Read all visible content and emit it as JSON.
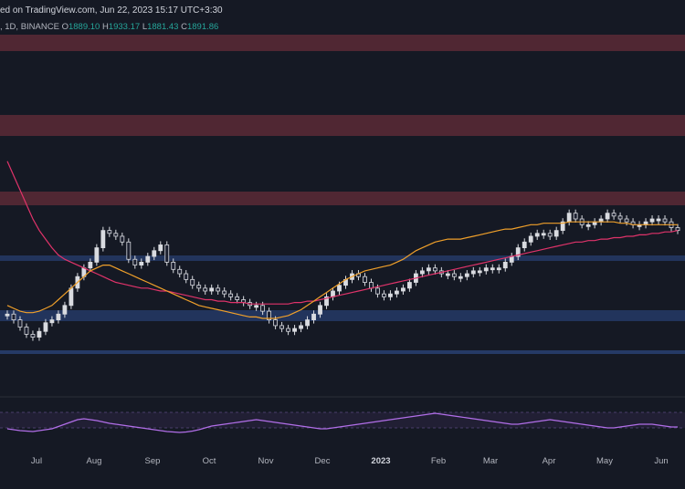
{
  "header": {
    "text": "ed on TradingView.com, Jun 22, 2023 15:17 UTC+3:30"
  },
  "ohlc": {
    "prefix": ", 1D, BINANCE",
    "open_label": "O",
    "open": "1889.10",
    "high_label": "H",
    "high": "1933.17",
    "low_label": "L",
    "low": "1881.43",
    "close_label": "C",
    "close": "1891.86"
  },
  "colors": {
    "background": "#151924",
    "up": "#26a69a",
    "down": "#ef5350",
    "candle": "#d9dbe0",
    "ma_fast": "#f0a02a",
    "ma_slow": "#e0336a",
    "rsi": "#b16ee8",
    "resistance_zone": "#5a2a36",
    "support_zone": "#253a66"
  },
  "chart_data": [
    {
      "type": "line",
      "description_of_series": "price candlestick with moving averages",
      "x_tick_labels": [
        "Jul",
        "Aug",
        "Sep",
        "Oct",
        "Nov",
        "Dec",
        "2023",
        "Feb",
        "Mar",
        "Apr",
        "May",
        "Jun"
      ],
      "ylim": [
        0,
        100
      ],
      "close": [
        34,
        30,
        25,
        20,
        18,
        22,
        28,
        30,
        34,
        40,
        52,
        60,
        66,
        70,
        80,
        92,
        90,
        88,
        84,
        72,
        68,
        70,
        74,
        78,
        82,
        70,
        65,
        62,
        58,
        54,
        52,
        50,
        52,
        50,
        48,
        46,
        44,
        42,
        40,
        40,
        36,
        30,
        26,
        24,
        22,
        24,
        26,
        30,
        34,
        40,
        46,
        50,
        54,
        58,
        62,
        60,
        56,
        52,
        48,
        46,
        48,
        50,
        52,
        56,
        62,
        64,
        66,
        64,
        62,
        62,
        60,
        60,
        62,
        64,
        64,
        66,
        66,
        66,
        70,
        74,
        80,
        84,
        88,
        90,
        90,
        88,
        92,
        98,
        104,
        100,
        96,
        96,
        98,
        100,
        104,
        102,
        100,
        98,
        96,
        96,
        98,
        100,
        100,
        98,
        94,
        92
      ],
      "ma_fast": [
        40,
        38,
        36,
        35,
        35,
        36,
        38,
        40,
        44,
        48,
        52,
        56,
        60,
        64,
        66,
        68,
        68,
        66,
        64,
        62,
        60,
        58,
        56,
        54,
        52,
        50,
        48,
        46,
        44,
        42,
        40,
        39,
        38,
        37,
        36,
        35,
        34,
        33,
        32,
        32,
        31,
        31,
        31,
        32,
        33,
        35,
        37,
        40,
        43,
        46,
        49,
        52,
        55,
        58,
        60,
        62,
        64,
        65,
        66,
        67,
        68,
        70,
        72,
        75,
        78,
        80,
        82,
        84,
        85,
        86,
        86,
        86,
        87,
        88,
        89,
        90,
        91,
        92,
        93,
        93,
        94,
        95,
        96,
        96,
        97,
        97,
        97,
        97,
        98,
        98,
        98,
        98,
        98,
        98,
        98,
        98,
        97,
        97,
        96,
        96,
        96,
        96,
        96,
        96,
        96,
        96
      ],
      "ma_slow": [
        140,
        130,
        120,
        110,
        100,
        92,
        86,
        80,
        75,
        72,
        70,
        68,
        66,
        64,
        62,
        60,
        58,
        56,
        55,
        54,
        53,
        52,
        52,
        51,
        50,
        50,
        49,
        48,
        47,
        46,
        45,
        44,
        44,
        43,
        43,
        42,
        42,
        42,
        41,
        41,
        41,
        41,
        41,
        41,
        41,
        42,
        42,
        43,
        43,
        44,
        45,
        46,
        47,
        48,
        49,
        50,
        51,
        52,
        53,
        54,
        55,
        56,
        57,
        58,
        59,
        60,
        61,
        62,
        63,
        64,
        65,
        66,
        67,
        68,
        69,
        70,
        71,
        72,
        73,
        74,
        75,
        76,
        77,
        78,
        79,
        80,
        81,
        82,
        83,
        84,
        84,
        85,
        85,
        86,
        86,
        87,
        87,
        88,
        88,
        89,
        89,
        90,
        90,
        91,
        91,
        92
      ],
      "rsi": [
        40,
        38,
        36,
        35,
        34,
        36,
        38,
        40,
        45,
        50,
        55,
        60,
        62,
        60,
        58,
        55,
        52,
        50,
        48,
        46,
        44,
        42,
        40,
        38,
        36,
        34,
        33,
        32,
        33,
        35,
        38,
        42,
        46,
        48,
        50,
        52,
        54,
        56,
        58,
        60,
        58,
        56,
        54,
        52,
        50,
        48,
        46,
        44,
        42,
        40,
        40,
        42,
        44,
        46,
        48,
        50,
        52,
        54,
        56,
        58,
        60,
        62,
        64,
        66,
        68,
        70,
        72,
        74,
        72,
        70,
        68,
        66,
        64,
        62,
        60,
        58,
        56,
        54,
        52,
        50,
        50,
        52,
        54,
        56,
        58,
        60,
        58,
        56,
        54,
        52,
        50,
        48,
        46,
        44,
        42,
        42,
        44,
        46,
        48,
        50,
        50,
        50,
        48,
        46,
        44,
        44
      ],
      "zones": [
        {
          "kind": "resistance"
        },
        {
          "kind": "resistance"
        },
        {
          "kind": "resistance"
        },
        {
          "kind": "support"
        },
        {
          "kind": "support"
        }
      ],
      "lines": [
        {
          "kind": "support"
        }
      ]
    }
  ]
}
